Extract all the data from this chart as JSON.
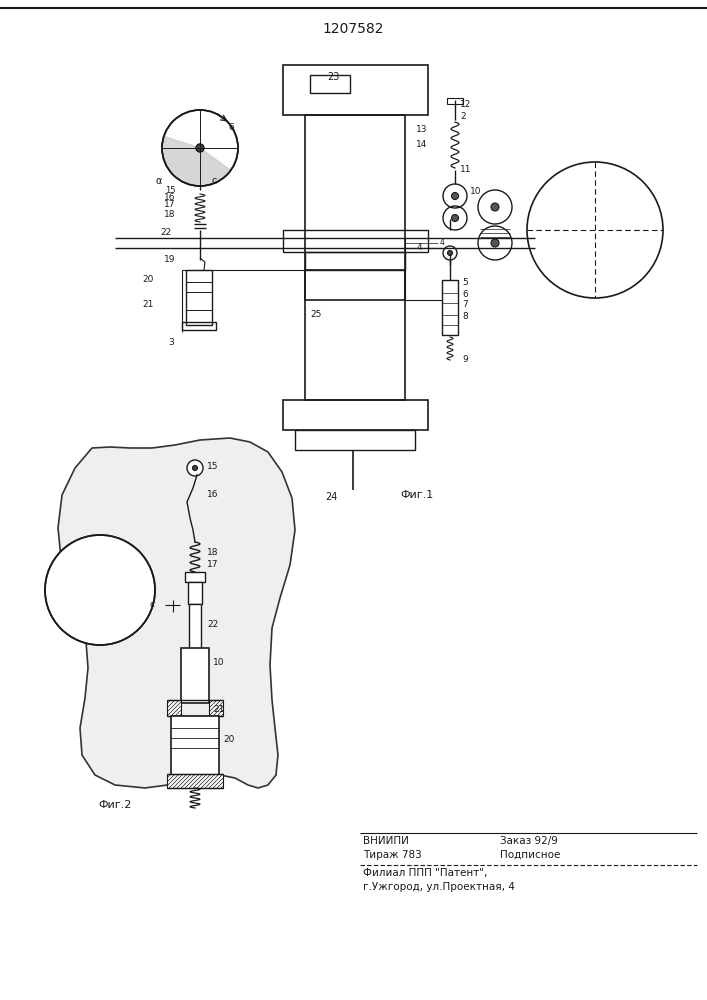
{
  "patent_number": "1207582",
  "fig1_caption": "Фиг.1",
  "fig2_caption": "Фиг.2",
  "bg_color": "#ffffff",
  "line_color": "#1a1a1a",
  "fig_width": 7.07,
  "fig_height": 10.0,
  "vniipi_line1": "ВНИИПИ",
  "vniipi_line1r": "Заказ 92/9",
  "vniipi_line2": "Тираж 783",
  "vniipi_line2r": "Подписное",
  "vniipi_line3": "Филиал ППП \"Патент\",",
  "vniipi_line4": "г.Ужгород, ул.Проектная, 4"
}
